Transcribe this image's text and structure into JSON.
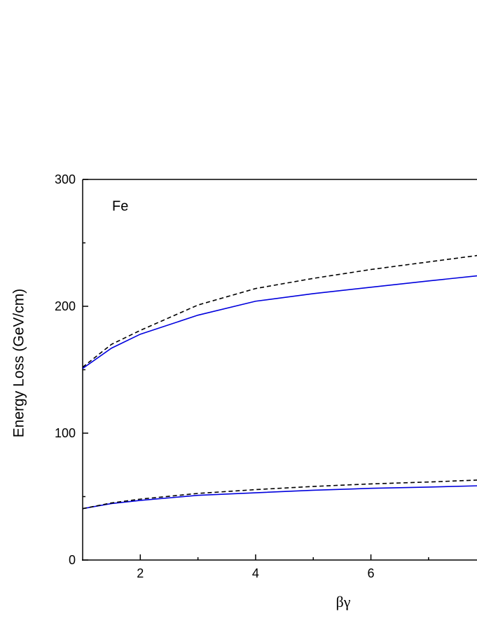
{
  "chart_data": {
    "type": "line",
    "x_label": "βγ",
    "y_label": "Energy Loss (GeV/cm)",
    "annotation": "Fe",
    "x": [
      1,
      1.5,
      2,
      3,
      4,
      5,
      6,
      7,
      7.84
    ],
    "series": [
      {
        "color": "#0000dd",
        "dash": false,
        "values": [
          151,
          167,
          178,
          193,
          204,
          210,
          215,
          220,
          224
        ]
      },
      {
        "color": "#000000",
        "dash": true,
        "values": [
          152,
          170,
          181,
          201,
          214,
          222,
          229,
          235,
          240
        ]
      },
      {
        "color": "#0000dd",
        "dash": false,
        "values": [
          40.5,
          44.5,
          47,
          51,
          53,
          55,
          56.5,
          57.5,
          58.5
        ]
      },
      {
        "color": "#000000",
        "dash": true,
        "values": [
          40.5,
          45,
          48,
          52.5,
          55.5,
          58,
          60,
          61.5,
          63
        ]
      }
    ],
    "xlim": [
      1,
      7.84
    ],
    "ylim": [
      0,
      300
    ],
    "xticks": [
      2,
      4,
      6
    ],
    "yticks": [
      0,
      100,
      200,
      300
    ],
    "xminorticks": [
      3,
      5,
      7
    ],
    "yminorticks": [
      50,
      150,
      250
    ]
  }
}
